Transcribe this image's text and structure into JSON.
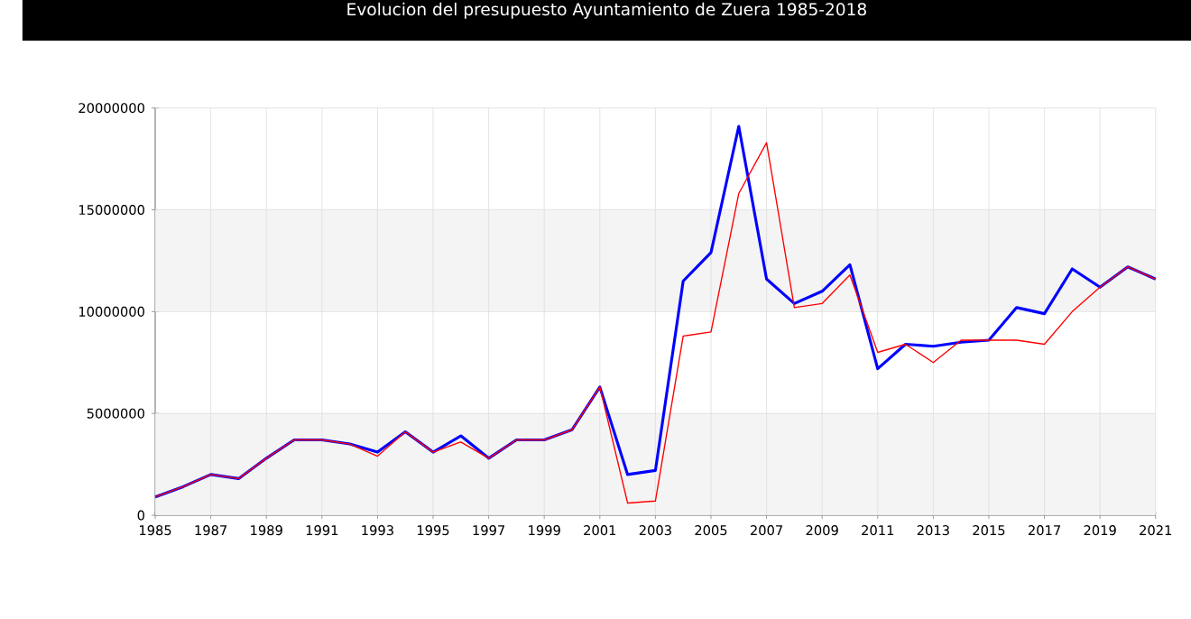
{
  "chart_data": {
    "type": "line",
    "title": "Evolucion del presupuesto Ayuntamiento de Zuera 1985-2018",
    "x": [
      1985,
      1986,
      1987,
      1988,
      1989,
      1990,
      1991,
      1992,
      1993,
      1994,
      1995,
      1996,
      1997,
      1998,
      1999,
      2000,
      2001,
      2002,
      2003,
      2004,
      2005,
      2006,
      2007,
      2008,
      2009,
      2010,
      2011,
      2012,
      2013,
      2014,
      2015,
      2016,
      2017,
      2018,
      2019,
      2020,
      2021
    ],
    "series": [
      {
        "color": "#0000ff",
        "values": [
          900000,
          1400000,
          2000000,
          1800000,
          2800000,
          3700000,
          3700000,
          3500000,
          3100000,
          4100000,
          3100000,
          3900000,
          2800000,
          3700000,
          3700000,
          4200000,
          6300000,
          2000000,
          2200000,
          11500000,
          12900000,
          19100000,
          11600000,
          10400000,
          11000000,
          12300000,
          7200000,
          8400000,
          8300000,
          8500000,
          8600000,
          10200000,
          9900000,
          12100000,
          11200000,
          12200000,
          11600000
        ]
      },
      {
        "color": "#ff0000",
        "values": [
          900000,
          1400000,
          2000000,
          1800000,
          2800000,
          3700000,
          3700000,
          3500000,
          2900000,
          4100000,
          3100000,
          3600000,
          2800000,
          3700000,
          3700000,
          4200000,
          6300000,
          600000,
          700000,
          8800000,
          9000000,
          15800000,
          18300000,
          10200000,
          10400000,
          11800000,
          8000000,
          8400000,
          7500000,
          8600000,
          8600000,
          8600000,
          8400000,
          10000000,
          11200000,
          12200000,
          11600000
        ]
      }
    ],
    "xlim": [
      1985,
      2021
    ],
    "ylim": [
      0,
      20000000
    ],
    "xticks": [
      1985,
      1987,
      1989,
      1991,
      1993,
      1995,
      1997,
      1999,
      2001,
      2003,
      2005,
      2007,
      2009,
      2011,
      2013,
      2015,
      2017,
      2019,
      2021
    ],
    "yticks": [
      0,
      5000000,
      10000000,
      15000000,
      20000000
    ],
    "bands": [
      {
        "axis": "y",
        "from": 0,
        "to": 5000000,
        "color": "#f4f4f4"
      },
      {
        "axis": "y",
        "from": 10000000,
        "to": 15000000,
        "color": "#f4f4f4"
      }
    ],
    "grid": true,
    "marker": "none",
    "line_style": "solid"
  }
}
